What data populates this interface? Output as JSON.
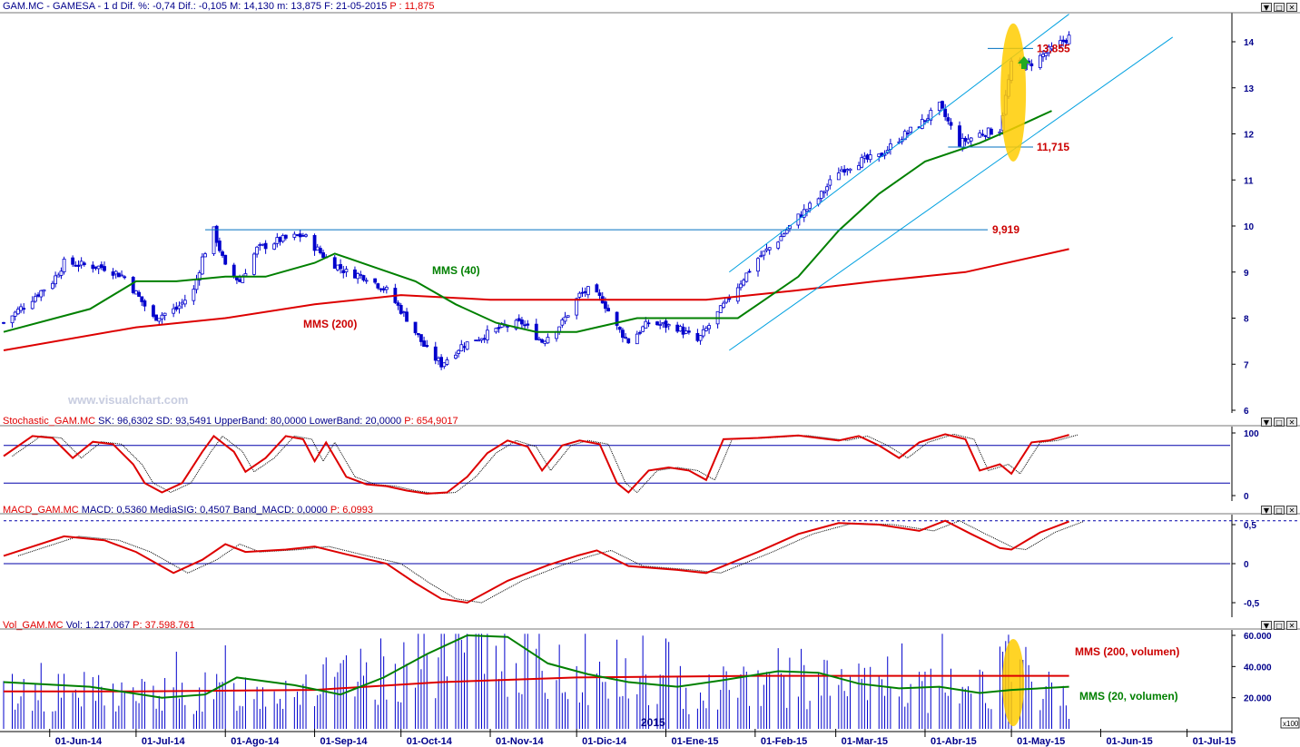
{
  "window_controls": {
    "down": "▼",
    "restore": "□",
    "close": "✕"
  },
  "watermark": "www.visualchart.com",
  "x_axis_labels": [
    "01-Jun-14",
    "01-Jul-14",
    "01-Ago-14",
    "01-Sep-14",
    "01-Oct-14",
    "01-Nov-14",
    "01-Dic-14",
    "01-Ene-15",
    "01-Feb-15",
    "01-Mar-15",
    "01-Abr-15",
    "01-May-15",
    "01-Jun-15",
    "01-Jul-15"
  ],
  "year_label": "2015",
  "colors": {
    "bg": "#ffffff",
    "axis_text": "#00008b",
    "candles": "#0000cc",
    "mms40": "#008000",
    "mms200": "#dd0000",
    "channel": "#00a0e0",
    "highlight": "#ffcc00",
    "stoch_k": "#dd0000",
    "volume_bars": "#0000cc"
  },
  "panels": {
    "price": {
      "header": {
        "symbol": "GAM.MC - GAMESA - 1 d",
        "dif_pct_label": "Dif. %:",
        "dif_pct": "-0,74",
        "dif_label": "Dif.:",
        "dif": "-0,105",
        "max_label": "M:",
        "max": "14,130",
        "min_label": "m:",
        "min": "13,875",
        "date_label": "F:",
        "date": "21-05-2015",
        "p_label": "P :",
        "p": "11,875"
      },
      "mms40_label": "MMS (40)",
      "mms200_label": "MMS (200)",
      "levels": [
        {
          "value": "13,855"
        },
        {
          "value": "11,715"
        },
        {
          "value": "9,919"
        }
      ]
    },
    "stochastic": {
      "header": {
        "name": "Stochastic_GAM.MC",
        "sk_label": "SK:",
        "sk": "96,6302",
        "sd_label": "SD:",
        "sd": "93,5491",
        "ub_label": "UpperBand:",
        "ub": "80,0000",
        "lb_label": "LowerBand:",
        "lb": "20,0000",
        "p_label": "P:",
        "p": "654,9017"
      }
    },
    "macd": {
      "header": {
        "name": "MACD_GAM.MC",
        "macd_label": "MACD:",
        "macd": "0,5360",
        "sig_label": "MediaSIG:",
        "sig": "0,4507",
        "band_label": "Band_MACD:",
        "band": "0,0000",
        "p_label": "P:",
        "p": "6,0993"
      }
    },
    "volume": {
      "header": {
        "name": "Vol_GAM.MC",
        "vol_label": "Vol:",
        "vol": "1.217.067",
        "p_label": "P:",
        "p": "37.598.761"
      },
      "mms200_label": "MMS (200, volumen)",
      "mms20_label": "MMS (20, volumen)",
      "scale_label": "x100"
    }
  },
  "chart_data": [
    {
      "type": "candlestick",
      "panel": "price",
      "x_range": [
        "2014-05-16",
        "2015-07-15"
      ],
      "y_axis": {
        "ticks": [
          6,
          7,
          8,
          9,
          10,
          11,
          12,
          13,
          14
        ],
        "range": [
          6,
          14.5
        ]
      },
      "close_keypoints": [
        [
          "2014-05-16",
          7.9
        ],
        [
          "2014-06-02",
          8.8
        ],
        [
          "2014-06-06",
          9.2
        ],
        [
          "2014-06-20",
          9.1
        ],
        [
          "2014-06-27",
          8.9
        ],
        [
          "2014-07-07",
          8.0
        ],
        [
          "2014-07-15",
          8.2
        ],
        [
          "2014-07-21",
          8.6
        ],
        [
          "2014-07-24",
          9.3
        ],
        [
          "2014-07-28",
          9.9
        ],
        [
          "2014-08-01",
          9.1
        ],
        [
          "2014-08-06",
          8.8
        ],
        [
          "2014-08-12",
          9.5
        ],
        [
          "2014-08-20",
          9.7
        ],
        [
          "2014-08-28",
          9.8
        ],
        [
          "2014-09-05",
          9.3
        ],
        [
          "2014-09-12",
          9.0
        ],
        [
          "2014-09-19",
          8.9
        ],
        [
          "2014-09-26",
          8.6
        ],
        [
          "2014-10-03",
          8.0
        ],
        [
          "2014-10-10",
          7.3
        ],
        [
          "2014-10-15",
          7.0
        ],
        [
          "2014-10-22",
          7.4
        ],
        [
          "2014-10-29",
          7.6
        ],
        [
          "2014-11-05",
          7.8
        ],
        [
          "2014-11-12",
          7.9
        ],
        [
          "2014-11-19",
          7.5
        ],
        [
          "2014-11-26",
          7.9
        ],
        [
          "2014-12-02",
          8.5
        ],
        [
          "2014-12-05",
          8.6
        ],
        [
          "2014-12-10",
          8.4
        ],
        [
          "2014-12-15",
          7.8
        ],
        [
          "2014-12-19",
          7.5
        ],
        [
          "2014-12-26",
          7.9
        ],
        [
          "2015-01-05",
          7.8
        ],
        [
          "2015-01-12",
          7.5
        ],
        [
          "2015-01-19",
          8.1
        ],
        [
          "2015-01-26",
          8.7
        ],
        [
          "2015-02-02",
          9.3
        ],
        [
          "2015-02-09",
          9.7
        ],
        [
          "2015-02-16",
          10.2
        ],
        [
          "2015-02-23",
          10.6
        ],
        [
          "2015-03-02",
          11.2
        ],
        [
          "2015-03-09",
          11.4
        ],
        [
          "2015-03-16",
          11.5
        ],
        [
          "2015-03-23",
          11.9
        ],
        [
          "2015-03-30",
          12.2
        ],
        [
          "2015-04-06",
          12.6
        ],
        [
          "2015-04-13",
          11.8
        ],
        [
          "2015-04-20",
          12.0
        ],
        [
          "2015-04-27",
          12.1
        ],
        [
          "2015-05-01",
          13.5
        ],
        [
          "2015-05-07",
          13.5
        ],
        [
          "2015-05-14",
          13.8
        ],
        [
          "2015-05-21",
          14.1
        ]
      ],
      "mms40": [
        [
          "2014-05-16",
          7.7
        ],
        [
          "2014-06-15",
          8.2
        ],
        [
          "2014-07-01",
          8.8
        ],
        [
          "2014-07-15",
          8.8
        ],
        [
          "2014-08-01",
          8.9
        ],
        [
          "2014-08-15",
          8.9
        ],
        [
          "2014-09-01",
          9.2
        ],
        [
          "2014-09-08",
          9.4
        ],
        [
          "2014-09-22",
          9.1
        ],
        [
          "2014-10-06",
          8.8
        ],
        [
          "2014-10-20",
          8.3
        ],
        [
          "2014-11-03",
          7.9
        ],
        [
          "2014-11-17",
          7.7
        ],
        [
          "2014-12-01",
          7.7
        ],
        [
          "2014-12-08",
          7.8
        ],
        [
          "2014-12-22",
          8.0
        ],
        [
          "2015-01-12",
          8.0
        ],
        [
          "2015-01-26",
          8.0
        ],
        [
          "2015-02-02",
          8.3
        ],
        [
          "2015-02-16",
          8.9
        ],
        [
          "2015-03-02",
          9.9
        ],
        [
          "2015-03-16",
          10.7
        ],
        [
          "2015-04-01",
          11.4
        ],
        [
          "2015-04-20",
          11.8
        ],
        [
          "2015-05-01",
          12.1
        ],
        [
          "2015-05-15",
          12.5
        ]
      ],
      "mms200": [
        [
          "2014-05-16",
          7.3
        ],
        [
          "2014-07-01",
          7.8
        ],
        [
          "2014-08-01",
          8.0
        ],
        [
          "2014-09-01",
          8.3
        ],
        [
          "2014-10-01",
          8.5
        ],
        [
          "2014-11-01",
          8.4
        ],
        [
          "2014-12-01",
          8.4
        ],
        [
          "2015-01-15",
          8.4
        ],
        [
          "2015-02-15",
          8.6
        ],
        [
          "2015-03-15",
          8.8
        ],
        [
          "2015-04-15",
          9.0
        ],
        [
          "2015-05-21",
          9.5
        ]
      ],
      "channel_upper": [
        [
          "2015-01-23",
          9.0
        ],
        [
          "2015-05-21",
          14.6
        ]
      ],
      "channel_lower": [
        [
          "2015-01-23",
          7.3
        ],
        [
          "2015-06-26",
          14.1
        ]
      ],
      "horizontal_levels": [
        {
          "value": 9.919,
          "from": "2014-07-25"
        },
        {
          "value": 11.715,
          "from": "2015-04-09"
        },
        {
          "value": 13.855,
          "from": "2015-05-06"
        }
      ],
      "highlight_ellipse": {
        "x": "2015-05-01",
        "y_center": 12.9,
        "y_half": 1.5
      }
    },
    {
      "type": "line",
      "panel": "stochastic",
      "y_axis": {
        "ticks": [
          0,
          100
        ],
        "range": [
          -5,
          105
        ]
      },
      "bands": [
        20,
        80
      ],
      "sk": [
        [
          "2014-05-16",
          63
        ],
        [
          "2014-05-26",
          95
        ],
        [
          "2014-06-02",
          92
        ],
        [
          "2014-06-09",
          60
        ],
        [
          "2014-06-16",
          86
        ],
        [
          "2014-06-23",
          82
        ],
        [
          "2014-06-30",
          50
        ],
        [
          "2014-07-04",
          20
        ],
        [
          "2014-07-10",
          5
        ],
        [
          "2014-07-17",
          20
        ],
        [
          "2014-07-24",
          70
        ],
        [
          "2014-07-28",
          95
        ],
        [
          "2014-08-04",
          70
        ],
        [
          "2014-08-08",
          38
        ],
        [
          "2014-08-15",
          60
        ],
        [
          "2014-08-22",
          95
        ],
        [
          "2014-08-28",
          90
        ],
        [
          "2014-09-01",
          55
        ],
        [
          "2014-09-05",
          85
        ],
        [
          "2014-09-12",
          30
        ],
        [
          "2014-09-19",
          18
        ],
        [
          "2014-09-26",
          15
        ],
        [
          "2014-10-03",
          8
        ],
        [
          "2014-10-10",
          3
        ],
        [
          "2014-10-17",
          5
        ],
        [
          "2014-10-24",
          30
        ],
        [
          "2014-10-31",
          68
        ],
        [
          "2014-11-07",
          88
        ],
        [
          "2014-11-14",
          78
        ],
        [
          "2014-11-19",
          40
        ],
        [
          "2014-11-26",
          80
        ],
        [
          "2014-12-02",
          88
        ],
        [
          "2014-12-09",
          82
        ],
        [
          "2014-12-15",
          20
        ],
        [
          "2014-12-19",
          5
        ],
        [
          "2014-12-26",
          40
        ],
        [
          "2015-01-02",
          45
        ],
        [
          "2015-01-09",
          40
        ],
        [
          "2015-01-15",
          25
        ],
        [
          "2015-01-21",
          90
        ],
        [
          "2015-02-02",
          92
        ],
        [
          "2015-02-16",
          96
        ],
        [
          "2015-03-02",
          88
        ],
        [
          "2015-03-09",
          95
        ],
        [
          "2015-03-16",
          80
        ],
        [
          "2015-03-23",
          60
        ],
        [
          "2015-03-30",
          85
        ],
        [
          "2015-04-08",
          98
        ],
        [
          "2015-04-15",
          90
        ],
        [
          "2015-04-20",
          40
        ],
        [
          "2015-04-27",
          50
        ],
        [
          "2015-05-01",
          35
        ],
        [
          "2015-05-08",
          85
        ],
        [
          "2015-05-14",
          88
        ],
        [
          "2015-05-21",
          97
        ]
      ]
    },
    {
      "type": "line",
      "panel": "macd",
      "y_axis": {
        "ticks": [
          -0.5,
          0,
          0.5
        ],
        "range": [
          -0.8,
          0.65
        ]
      },
      "bands": [
        0,
        0.5
      ],
      "macd": [
        [
          "2014-05-16",
          0.1
        ],
        [
          "2014-06-06",
          0.35
        ],
        [
          "2014-06-20",
          0.3
        ],
        [
          "2014-07-01",
          0.15
        ],
        [
          "2014-07-14",
          -0.12
        ],
        [
          "2014-07-24",
          0.05
        ],
        [
          "2014-08-01",
          0.25
        ],
        [
          "2014-08-08",
          0.15
        ],
        [
          "2014-08-22",
          0.18
        ],
        [
          "2014-09-01",
          0.22
        ],
        [
          "2014-09-12",
          0.12
        ],
        [
          "2014-09-26",
          0.0
        ],
        [
          "2014-10-06",
          -0.25
        ],
        [
          "2014-10-15",
          -0.45
        ],
        [
          "2014-10-24",
          -0.5
        ],
        [
          "2014-11-07",
          -0.22
        ],
        [
          "2014-11-21",
          -0.02
        ],
        [
          "2014-12-01",
          0.1
        ],
        [
          "2014-12-08",
          0.17
        ],
        [
          "2014-12-19",
          -0.03
        ],
        [
          "2015-01-05",
          -0.08
        ],
        [
          "2015-01-15",
          -0.12
        ],
        [
          "2015-02-02",
          0.15
        ],
        [
          "2015-02-16",
          0.38
        ],
        [
          "2015-03-02",
          0.52
        ],
        [
          "2015-03-16",
          0.5
        ],
        [
          "2015-03-30",
          0.42
        ],
        [
          "2015-04-08",
          0.55
        ],
        [
          "2015-04-17",
          0.38
        ],
        [
          "2015-04-27",
          0.2
        ],
        [
          "2015-05-01",
          0.18
        ],
        [
          "2015-05-11",
          0.4
        ],
        [
          "2015-05-21",
          0.54
        ]
      ]
    },
    {
      "type": "bar",
      "panel": "volume",
      "y_axis": {
        "ticks": [
          20000,
          40000,
          60000
        ],
        "range": [
          0,
          62000
        ],
        "unit_label": "x100"
      },
      "mms20": [
        [
          "2014-05-16",
          30000
        ],
        [
          "2014-06-15",
          27000
        ],
        [
          "2014-07-10",
          20000
        ],
        [
          "2014-07-25",
          22000
        ],
        [
          "2014-08-05",
          33000
        ],
        [
          "2014-08-25",
          28000
        ],
        [
          "2014-09-10",
          22000
        ],
        [
          "2014-09-25",
          33000
        ],
        [
          "2014-10-10",
          48000
        ],
        [
          "2014-10-24",
          60000
        ],
        [
          "2014-11-07",
          59000
        ],
        [
          "2014-11-21",
          42000
        ],
        [
          "2014-12-05",
          35000
        ],
        [
          "2014-12-19",
          30000
        ],
        [
          "2015-01-05",
          27000
        ],
        [
          "2015-01-20",
          31000
        ],
        [
          "2015-02-09",
          37000
        ],
        [
          "2015-02-23",
          36000
        ],
        [
          "2015-03-09",
          29000
        ],
        [
          "2015-03-23",
          26000
        ],
        [
          "2015-04-06",
          27000
        ],
        [
          "2015-04-20",
          23000
        ],
        [
          "2015-05-01",
          25000
        ],
        [
          "2015-05-21",
          27000
        ]
      ],
      "mms200": [
        [
          "2014-05-16",
          24000
        ],
        [
          "2014-07-01",
          24000
        ],
        [
          "2014-09-01",
          25000
        ],
        [
          "2014-10-15",
          30000
        ],
        [
          "2014-12-01",
          33000
        ],
        [
          "2015-02-01",
          34000
        ],
        [
          "2015-05-21",
          34000
        ]
      ],
      "volume_pattern": [
        [
          "2014-05-16",
          25000
        ],
        [
          "2014-06-15",
          24000
        ],
        [
          "2014-07-15",
          22000
        ],
        [
          "2014-08-15",
          27000
        ],
        [
          "2014-09-15",
          32000
        ],
        [
          "2014-10-15",
          52000
        ],
        [
          "2014-11-01",
          60000
        ],
        [
          "2014-11-20",
          40000
        ],
        [
          "2014-12-10",
          32000
        ],
        [
          "2015-01-10",
          26000
        ],
        [
          "2015-02-10",
          35000
        ],
        [
          "2015-03-10",
          28000
        ],
        [
          "2015-04-10",
          25000
        ],
        [
          "2015-05-01",
          40000
        ],
        [
          "2015-05-21",
          18000
        ]
      ]
    }
  ]
}
